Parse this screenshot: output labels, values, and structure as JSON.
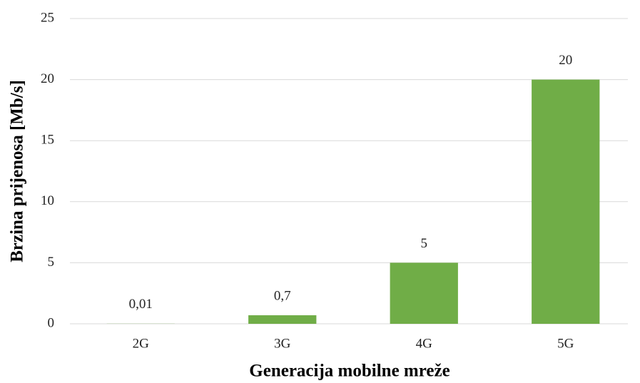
{
  "chart_data": {
    "type": "bar",
    "x_label": "Generacija mobilne mreže",
    "y_label": "Brzina prijenosa [Mb/s]",
    "categories": [
      "2G",
      "3G",
      "4G",
      "5G"
    ],
    "values": [
      0.01,
      0.7,
      5,
      20
    ],
    "value_labels": [
      "0,01",
      "0,7",
      "5",
      "20"
    ],
    "color": "#70ad47",
    "ylim": [
      0,
      25
    ],
    "yticks": [
      0,
      5,
      10,
      15,
      20,
      25
    ],
    "grid": true
  }
}
